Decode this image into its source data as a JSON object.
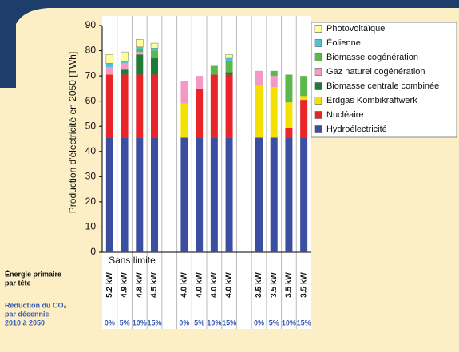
{
  "chart_data": {
    "type": "stacked_bar",
    "y_label": "Production d'électricité en 2050 [TWh]",
    "ylim": [
      0,
      90
    ],
    "yticks": [
      0,
      10,
      20,
      30,
      40,
      50,
      60,
      70,
      80,
      90
    ],
    "group_label": "Sans limite",
    "row_labels": {
      "energy": [
        "Énergie primaire",
        "par tête"
      ],
      "reduction": [
        "Réduction du CO₂",
        "par décennie",
        "2010 à 2050"
      ]
    },
    "categories": [
      "5.2 kW",
      "4.9 kW",
      "4.8 kW",
      "4.5 kW",
      null,
      "4.0 kW",
      "4.0 kW",
      "4.0 kW",
      "4.0 kW",
      null,
      "3.5 kW",
      "3.5 kW",
      "3.5 kW",
      "3.5 kW"
    ],
    "reductions": [
      "0%",
      "5%",
      "10%",
      "15%",
      null,
      "0%",
      "5%",
      "10%",
      "15%",
      null,
      "0%",
      "5%",
      "10%",
      "15%"
    ],
    "series": [
      {
        "name": "Hydroélectricité",
        "color": "#3b4ea0",
        "values": [
          45.5,
          45.5,
          45.5,
          45.5,
          null,
          45.5,
          45.5,
          45.5,
          45.5,
          null,
          45.5,
          45.5,
          45.5,
          45.5
        ]
      },
      {
        "name": "Nucléaire",
        "color": "#e8262a",
        "values": [
          25,
          25,
          25,
          25,
          null,
          0,
          19.5,
          25,
          25,
          null,
          0,
          0,
          4,
          15
        ]
      },
      {
        "name": "Erdgas Kombikraftwerk",
        "color": "#f5e100",
        "values": [
          0,
          0,
          0,
          0,
          null,
          13.5,
          0,
          0,
          0,
          null,
          20.5,
          20,
          10,
          1.5
        ]
      },
      {
        "name": "Biomasse centrale combinée",
        "color": "#1f7a3a",
        "values": [
          0,
          2,
          8,
          6.5,
          null,
          0,
          0,
          0,
          1,
          null,
          0,
          0,
          0,
          0
        ]
      },
      {
        "name": "Gaz naturel cogénération",
        "color": "#f29ac6",
        "values": [
          3,
          2.5,
          1,
          0,
          null,
          9,
          5,
          0,
          0,
          null,
          6,
          4.5,
          0,
          0
        ]
      },
      {
        "name": "Biomasse cogénération",
        "color": "#5cb84a",
        "values": [
          0,
          0,
          1,
          3,
          null,
          0,
          0,
          3.5,
          4.5,
          null,
          0,
          2,
          11,
          8
        ]
      },
      {
        "name": "Éolienne",
        "color": "#4bc3d8",
        "values": [
          1.5,
          1,
          1,
          1,
          null,
          0,
          0,
          0,
          1,
          null,
          0,
          0,
          0,
          0
        ]
      },
      {
        "name": "Photovoltaïque",
        "color": "#ffff99",
        "values": [
          3.5,
          3.5,
          3,
          2,
          null,
          0,
          0,
          0,
          1.5,
          null,
          0,
          0,
          0,
          0
        ]
      }
    ]
  }
}
